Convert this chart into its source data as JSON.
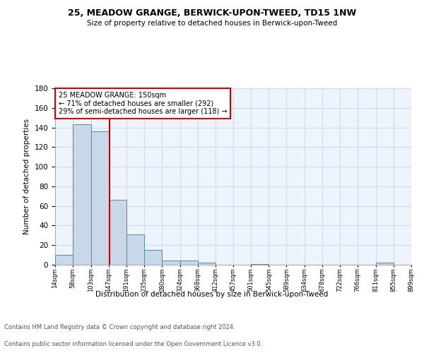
{
  "title": "25, MEADOW GRANGE, BERWICK-UPON-TWEED, TD15 1NW",
  "subtitle": "Size of property relative to detached houses in Berwick-upon-Tweed",
  "xlabel": "Distribution of detached houses by size in Berwick-upon-Tweed",
  "ylabel": "Number of detached properties",
  "footer_line1": "Contains HM Land Registry data © Crown copyright and database right 2024.",
  "footer_line2": "Contains public sector information licensed under the Open Government Licence v3.0.",
  "annotation_line1": "25 MEADOW GRANGE: 150sqm",
  "annotation_line2": "← 71% of detached houses are smaller (292)",
  "annotation_line3": "29% of semi-detached houses are larger (118) →",
  "property_size": 150,
  "bin_edges": [
    14,
    58,
    103,
    147,
    191,
    235,
    280,
    324,
    368,
    412,
    457,
    501,
    545,
    589,
    634,
    678,
    722,
    766,
    811,
    855,
    899
  ],
  "bar_heights": [
    10,
    143,
    136,
    66,
    31,
    15,
    4,
    4,
    2,
    0,
    0,
    1,
    0,
    0,
    0,
    0,
    0,
    0,
    2,
    0
  ],
  "bar_color": "#c8d8e8",
  "bar_edge_color": "#5588aa",
  "line_color": "#cc0000",
  "annotation_box_color": "#cc0000",
  "grid_color": "#ccddee",
  "bg_color": "#eef4fb",
  "ylim": [
    0,
    180
  ],
  "yticks": [
    0,
    20,
    40,
    60,
    80,
    100,
    120,
    140,
    160,
    180
  ]
}
